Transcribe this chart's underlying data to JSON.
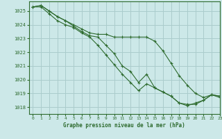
{
  "title": "Graphe pression niveau de la mer (hPa)",
  "background_color": "#cce8e8",
  "grid_color": "#aacccc",
  "line_color": "#2d6a2d",
  "xlim": [
    -0.5,
    23
  ],
  "ylim": [
    1017.5,
    1025.7
  ],
  "yticks": [
    1018,
    1019,
    1020,
    1021,
    1022,
    1023,
    1024,
    1025
  ],
  "xticks": [
    0,
    1,
    2,
    3,
    4,
    5,
    6,
    7,
    8,
    9,
    10,
    11,
    12,
    13,
    14,
    15,
    16,
    17,
    18,
    19,
    20,
    21,
    22,
    23
  ],
  "series": [
    [
      1025.3,
      1025.4,
      1025.0,
      1024.6,
      1024.3,
      1024.0,
      1023.7,
      1023.4,
      1023.3,
      1023.3,
      1023.1,
      1023.1,
      1023.1,
      1023.1,
      1023.1,
      1022.8,
      1022.1,
      1021.2,
      1020.3,
      1019.6,
      1019.0,
      1018.7,
      1018.9,
      1018.8
    ],
    [
      1025.3,
      1025.4,
      1025.0,
      1024.6,
      1024.3,
      1023.9,
      1023.5,
      1023.2,
      1023.1,
      1022.5,
      1021.9,
      1021.0,
      1020.6,
      1019.8,
      1020.4,
      1019.4,
      1019.1,
      1018.8,
      1018.3,
      1018.2,
      1018.2,
      1018.5,
      1018.9,
      1018.8
    ],
    [
      1025.3,
      1025.3,
      1024.8,
      1024.3,
      1024.0,
      1023.8,
      1023.4,
      1023.1,
      1022.5,
      1021.8,
      1021.1,
      1020.4,
      1019.8,
      1019.2,
      1019.7,
      1019.4,
      1019.1,
      1018.8,
      1018.3,
      1018.1,
      1018.3,
      1018.5,
      1018.9,
      1018.7
    ]
  ]
}
